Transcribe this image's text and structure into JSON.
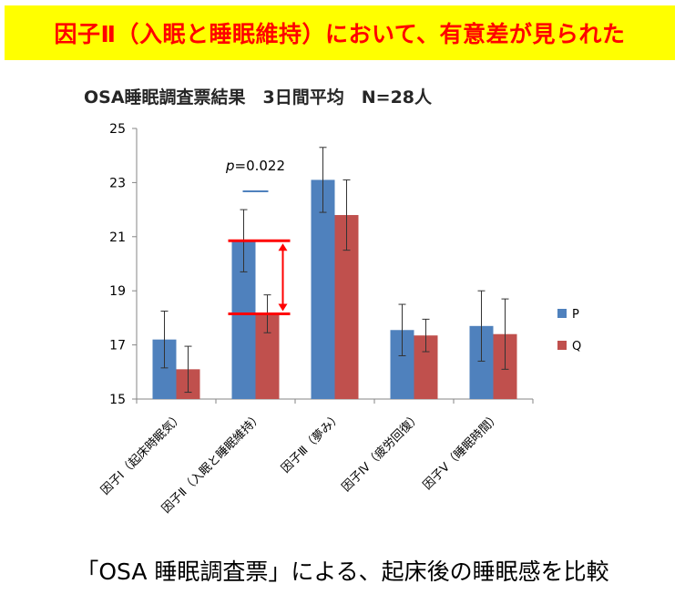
{
  "banner": {
    "text": "因子Ⅱ（入眠と睡眠維持）において、有意差が見られた"
  },
  "caption": "「OSA 睡眠調査票」による、起床後の睡眠感を比較",
  "colors": {
    "P": "#4f81bd",
    "Q": "#c0504d",
    "banner_bg": "#ffff00",
    "banner_text": "#ff0000",
    "highlight": "#ff0000"
  },
  "chart_data": {
    "type": "bar",
    "title": "OSA睡眠調査票結果　3日間平均　N=28人",
    "categories": [
      "因子Ⅰ（起床時眠気）",
      "因子Ⅱ（入眠と睡眠維持）",
      "因子Ⅲ（夢み）",
      "因子Ⅳ（疲労回復）",
      "因子Ⅴ（睡眠時間）"
    ],
    "series": [
      {
        "name": "P",
        "values": [
          17.2,
          20.85,
          23.1,
          17.55,
          17.7
        ],
        "error": [
          1.05,
          1.15,
          1.2,
          0.95,
          1.3
        ]
      },
      {
        "name": "Q",
        "values": [
          16.1,
          18.15,
          21.8,
          17.35,
          17.4
        ],
        "error": [
          0.85,
          0.7,
          1.3,
          0.6,
          1.3
        ]
      }
    ],
    "ylim": [
      15,
      25
    ],
    "yticks": [
      15,
      17,
      19,
      21,
      23,
      25
    ],
    "xlabel": "",
    "ylabel": "",
    "legend": "right",
    "annotation": {
      "category_index": 1,
      "p_label": "p",
      "p_value": "=0.022"
    }
  }
}
